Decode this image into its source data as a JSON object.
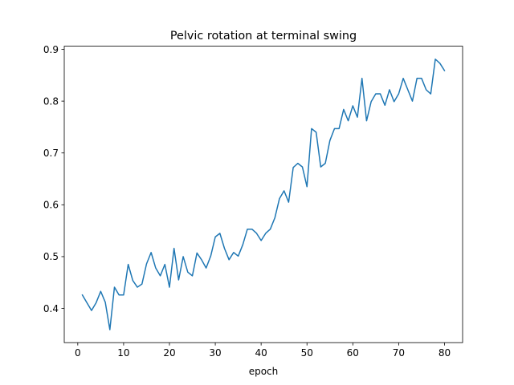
{
  "chart_data": {
    "type": "line",
    "title": "Pelvic rotation at terminal swing",
    "xlabel": "epoch",
    "ylabel": "",
    "xlim": [
      -2.95,
      83.95
    ],
    "ylim": [
      0.334,
      0.906
    ],
    "xticks": [
      0,
      10,
      20,
      30,
      40,
      50,
      60,
      70,
      80
    ],
    "yticks": [
      0.4,
      0.5,
      0.6,
      0.7,
      0.8,
      0.9
    ],
    "grid": false,
    "series": [
      {
        "color": "#1f77b4",
        "x": [
          1,
          2,
          3,
          4,
          5,
          6,
          7,
          8,
          9,
          10,
          11,
          12,
          13,
          14,
          15,
          16,
          17,
          18,
          19,
          20,
          21,
          22,
          23,
          24,
          25,
          26,
          27,
          28,
          29,
          30,
          31,
          32,
          33,
          34,
          35,
          36,
          37,
          38,
          39,
          40,
          41,
          42,
          43,
          44,
          45,
          46,
          47,
          48,
          49,
          50,
          51,
          52,
          53,
          54,
          55,
          56,
          57,
          58,
          59,
          60,
          61,
          62,
          63,
          64,
          65,
          66,
          67,
          68,
          69,
          70,
          71,
          72,
          73,
          74,
          75,
          76,
          77,
          78,
          79,
          80
        ],
        "y": [
          0.426,
          0.411,
          0.396,
          0.411,
          0.433,
          0.412,
          0.359,
          0.441,
          0.426,
          0.426,
          0.485,
          0.454,
          0.441,
          0.447,
          0.486,
          0.508,
          0.478,
          0.463,
          0.485,
          0.441,
          0.516,
          0.455,
          0.5,
          0.47,
          0.463,
          0.507,
          0.494,
          0.478,
          0.501,
          0.538,
          0.545,
          0.516,
          0.494,
          0.508,
          0.501,
          0.523,
          0.553,
          0.553,
          0.545,
          0.531,
          0.545,
          0.553,
          0.575,
          0.612,
          0.627,
          0.605,
          0.672,
          0.68,
          0.673,
          0.635,
          0.747,
          0.74,
          0.673,
          0.68,
          0.724,
          0.747,
          0.747,
          0.784,
          0.762,
          0.791,
          0.769,
          0.844,
          0.762,
          0.799,
          0.814,
          0.814,
          0.792,
          0.822,
          0.799,
          0.814,
          0.844,
          0.822,
          0.8,
          0.844,
          0.844,
          0.822,
          0.814,
          0.881,
          0.873,
          0.859
        ]
      }
    ]
  }
}
